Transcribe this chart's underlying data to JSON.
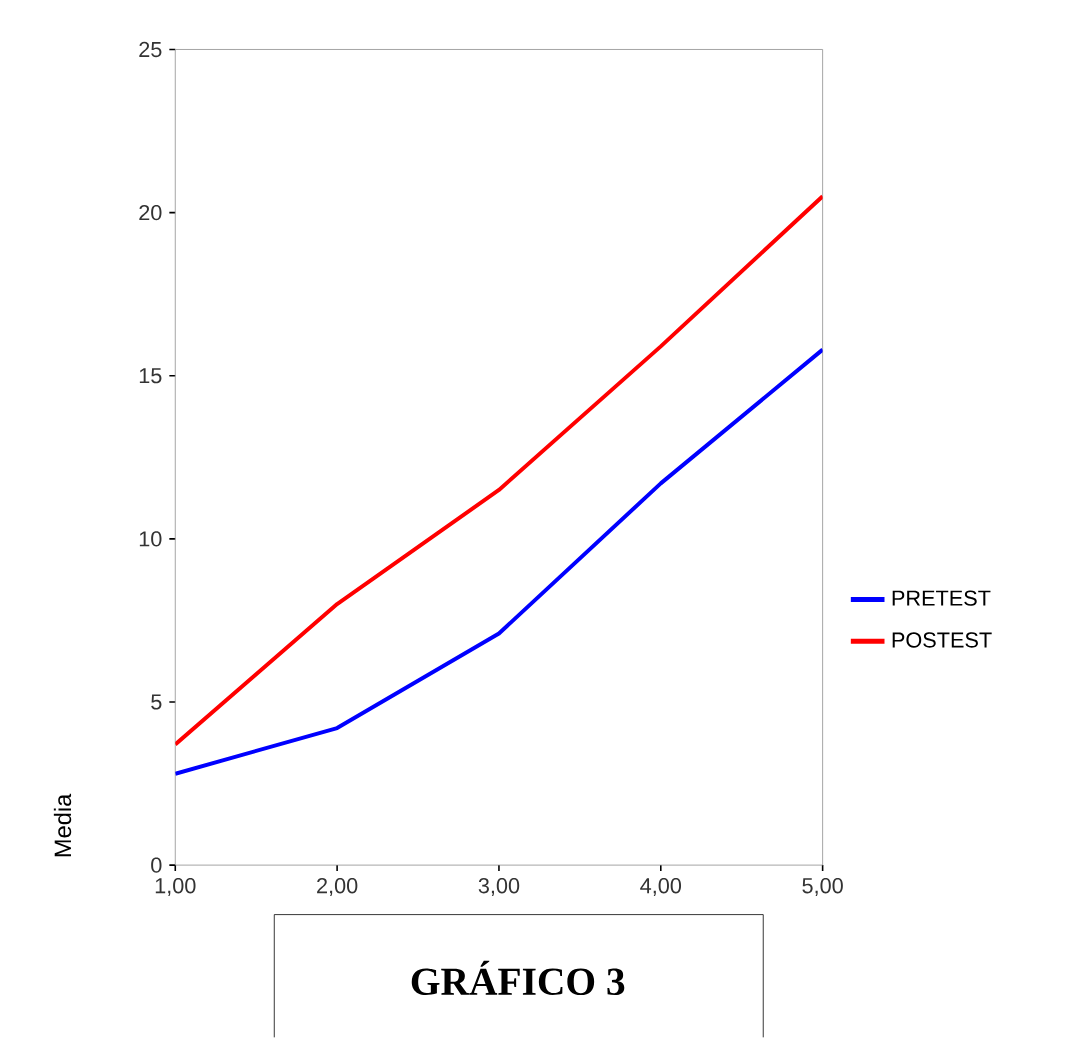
{
  "chart_data": {
    "type": "line",
    "title": "GRÁFICO 3",
    "ylabel": "Media",
    "x": [
      1,
      2,
      3,
      4,
      5
    ],
    "series": [
      {
        "name": "PRETEST",
        "color": "#0000ff",
        "values": [
          2.8,
          4.2,
          7.1,
          11.7,
          15.8
        ]
      },
      {
        "name": "POSTEST",
        "color": "#ff0000",
        "values": [
          3.7,
          8.0,
          11.5,
          15.9,
          20.5
        ]
      }
    ],
    "xlim": [
      1,
      5
    ],
    "ylim": [
      0,
      25
    ],
    "xticks": [
      {
        "value": 1,
        "label": "1,00"
      },
      {
        "value": 2,
        "label": "2,00"
      },
      {
        "value": 3,
        "label": "3,00"
      },
      {
        "value": 4,
        "label": "4,00"
      },
      {
        "value": 5,
        "label": "5,00"
      }
    ],
    "yticks": [
      0,
      5,
      10,
      15,
      20,
      25
    ],
    "grid": false,
    "legend": "right",
    "marker": "none",
    "line_style": "solid"
  }
}
